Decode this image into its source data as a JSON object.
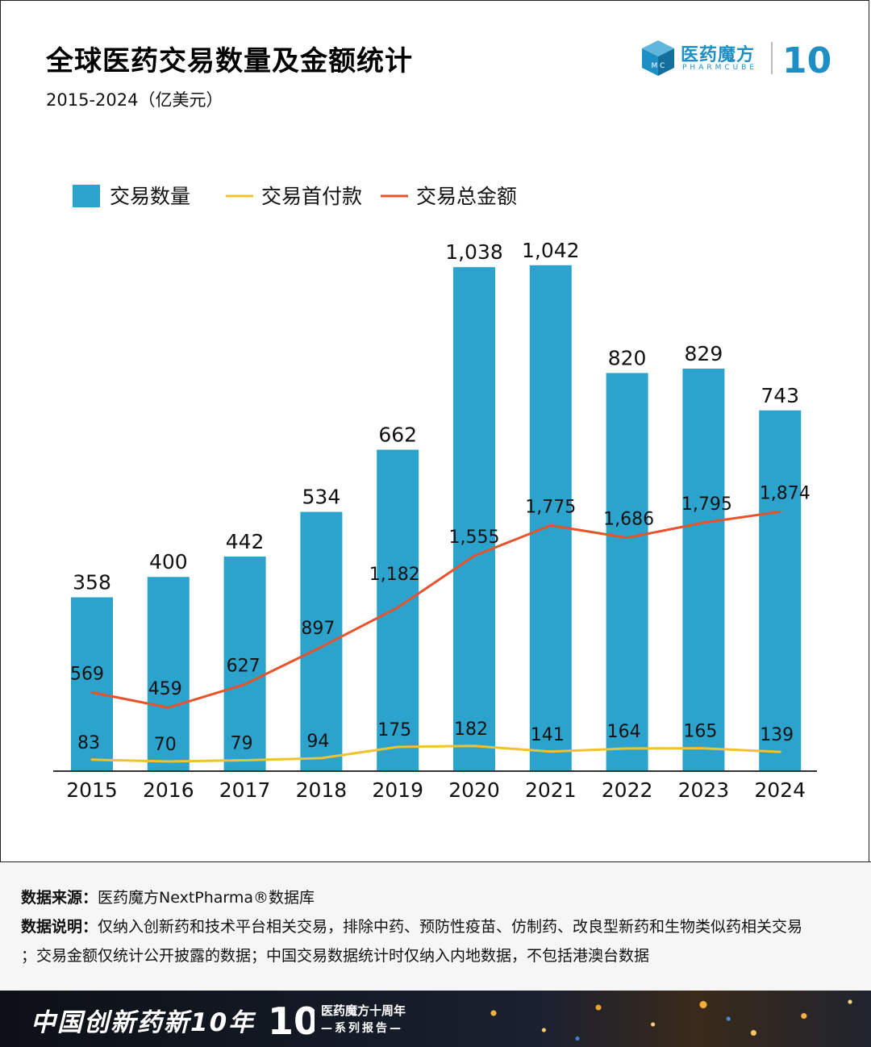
{
  "header": {
    "title": "全球医药交易数量及金额统计",
    "subtitle": "2015-2024（亿美元）",
    "logo_cn": "医药魔方",
    "logo_en": "PHARMCUBE",
    "logo_cube_letters": "M C",
    "anniversary_mark": "10"
  },
  "colors": {
    "bar": "#2ba3cc",
    "upfront_line": "#f2c12e",
    "total_line": "#e8532b",
    "brand": "#1e8fc4"
  },
  "chart_data": {
    "type": "bar",
    "title": "全球医药交易数量及金额统计",
    "subtitle": "2015-2024（亿美元）",
    "categories": [
      "2015",
      "2016",
      "2017",
      "2018",
      "2019",
      "2020",
      "2021",
      "2022",
      "2023",
      "2024"
    ],
    "series": [
      {
        "name": "交易数量",
        "type": "bar",
        "values": [
          358,
          400,
          442,
          534,
          662,
          1038,
          1042,
          820,
          829,
          743
        ],
        "labels": [
          "358",
          "400",
          "442",
          "534",
          "662",
          "1,038",
          "1,042",
          "820",
          "829",
          "743"
        ]
      },
      {
        "name": "交易首付款",
        "type": "line",
        "values": [
          83,
          70,
          79,
          94,
          175,
          182,
          141,
          164,
          165,
          139
        ],
        "labels": [
          "83",
          "70",
          "79",
          "94",
          "175",
          "182",
          "141",
          "164",
          "165",
          "139"
        ]
      },
      {
        "name": "交易总金额",
        "type": "line",
        "values": [
          569,
          459,
          627,
          897,
          1182,
          1555,
          1775,
          1686,
          1795,
          1874
        ],
        "labels": [
          "569",
          "459",
          "627",
          "897",
          "1,182",
          "1,555",
          "1,775",
          "1,686",
          "1,795",
          "1,874"
        ]
      }
    ],
    "legend": [
      "交易数量",
      "交易首付款",
      "交易总金额"
    ],
    "legend_position": "top-left",
    "grid": false
  },
  "footer": {
    "source_label": "数据来源：",
    "source_text": "医药魔方NextPharma®数据库",
    "note_label": "数据说明：",
    "note_text_1": "仅纳入创新药和技术平台相关交易，排除中药、预防性疫苗、仿制药、改良型新药和生物类似药相关交易",
    "note_text_2": "；交易金额仅统计公开披露的数据；中国交易数据统计时仅纳入内地数据，不包括港澳台数据"
  },
  "banner": {
    "title": "中国创新药新10年",
    "mark": "10",
    "sub1": "医药魔方十周年",
    "sub2": "—系列报告—"
  }
}
